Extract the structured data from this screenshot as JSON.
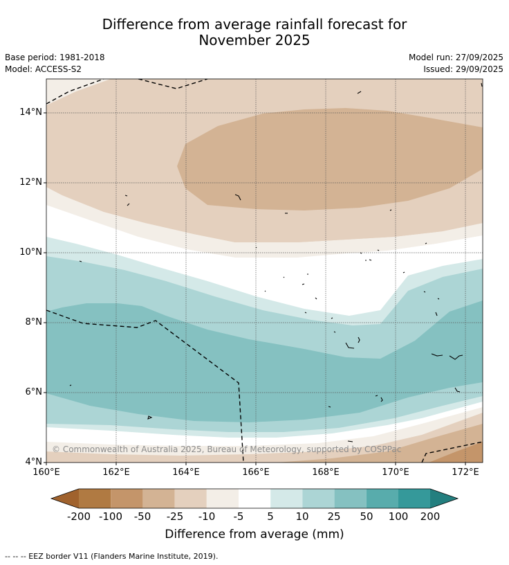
{
  "title": {
    "line1": "Difference from average rainfall forecast for",
    "line2": "November 2025"
  },
  "meta": {
    "base_period": "Base period: 1981-2018",
    "model": "Model: ACCESS-S2",
    "model_run": "Model run: 27/09/2025",
    "issued": "Issued: 29/09/2025"
  },
  "map": {
    "lat_labels": [
      "14°N",
      "12°N",
      "10°N",
      "8°N",
      "6°N",
      "4°N"
    ],
    "lon_labels": [
      "160°E",
      "162°E",
      "164°E",
      "166°E",
      "168°E",
      "170°E",
      "172°E"
    ],
    "credit": "© Commonwealth of Australia 2025, Bureau of Meteorology, supported by COSPPac"
  },
  "colorbar": {
    "labels": [
      "-200",
      "-100",
      "-50",
      "-25",
      "-10",
      "-5",
      "5",
      "10",
      "25",
      "50",
      "100",
      "200"
    ],
    "colors": {
      "under": "#a0622d",
      "b1": "#b07a42",
      "b2": "#c4956a",
      "b3": "#d3b394",
      "b4": "#e4d0be",
      "b5": "#f3eee7",
      "b6": "#ffffff",
      "b7": "#d4e9e8",
      "b8": "#acd5d5",
      "b9": "#85c1c1",
      "b10": "#58acac",
      "b11": "#35999a",
      "over": "#237f7f"
    },
    "title": "Difference from average (mm)"
  },
  "footnote": "-- -- -- EEZ border V11 (Flanders Marine Institute, 2019)."
}
